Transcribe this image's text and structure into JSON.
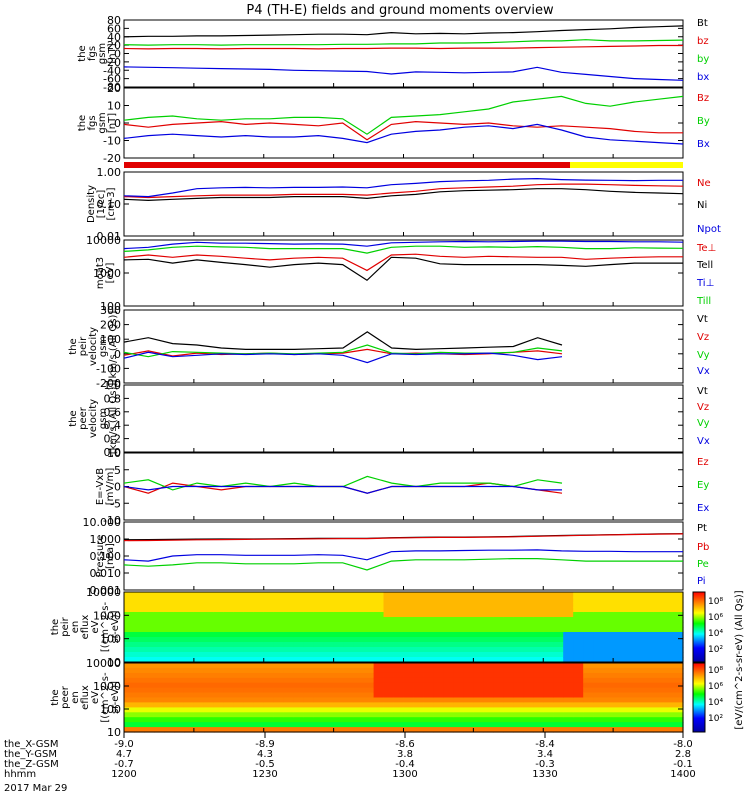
{
  "title": "P4 (TH-E) fields and ground moments overview",
  "colors": {
    "black": "#000000",
    "red": "#e00000",
    "green": "#00d000",
    "blue": "#0000e0",
    "yellow": "#ffff00"
  },
  "chart_data": [
    {
      "type": "line",
      "panel_id": "fgs-gsm-nt",
      "ylabel": [
        "the",
        "fgs",
        "gsm",
        "[nT]"
      ],
      "ylim": [
        -80,
        80
      ],
      "ticks": [
        "80",
        "60",
        "40",
        "20",
        "0",
        "-20",
        "-40",
        "-60",
        "-80"
      ],
      "series": [
        {
          "name": "Bt",
          "color": "black",
          "values": [
            40,
            41,
            41,
            42,
            42,
            43,
            44,
            45,
            46,
            46,
            45,
            50,
            47,
            48,
            47,
            49,
            50,
            52,
            55,
            57,
            59,
            62,
            64,
            66
          ]
        },
        {
          "name": "bz",
          "color": "red",
          "values": [
            12,
            11,
            12,
            12,
            11,
            12,
            12,
            12,
            11,
            12,
            12,
            13,
            13,
            12,
            13,
            13,
            13,
            14,
            15,
            16,
            17,
            18,
            19,
            19
          ]
        },
        {
          "name": "by",
          "color": "green",
          "values": [
            21,
            20,
            21,
            21,
            20,
            21,
            21,
            21,
            21,
            22,
            22,
            23,
            23,
            25,
            25,
            26,
            28,
            30,
            30,
            33,
            30,
            30,
            31,
            32
          ]
        },
        {
          "name": "bx",
          "color": "blue",
          "values": [
            -32,
            -33,
            -34,
            -35,
            -36,
            -37,
            -38,
            -40,
            -41,
            -42,
            -43,
            -49,
            -44,
            -45,
            -46,
            -45,
            -44,
            -33,
            -45,
            -50,
            -55,
            -60,
            -62,
            -64
          ]
        }
      ]
    },
    {
      "type": "line",
      "panel_id": "fgs-gsm-nt-zoom",
      "ylabel": [
        "the",
        "fgs",
        "gsm",
        "[nT]"
      ],
      "ylim": [
        -25,
        25
      ],
      "ticks": [
        "20",
        "10",
        "0",
        "-10",
        "-20"
      ],
      "series": [
        {
          "name": "Bz",
          "color": "red",
          "values": [
            -1,
            -3,
            -1,
            0,
            1,
            -1,
            0,
            -1,
            -2,
            0,
            -12,
            -1,
            1,
            0,
            -1,
            0,
            -2,
            -3,
            -2,
            -3,
            -4,
            -6,
            -7,
            -7
          ]
        },
        {
          "name": "By",
          "color": "green",
          "values": [
            2,
            4,
            5,
            3,
            2,
            3,
            3,
            4,
            4,
            3,
            -8,
            4,
            5,
            6,
            8,
            10,
            15,
            17,
            19,
            14,
            12,
            15,
            17,
            19
          ]
        },
        {
          "name": "Bx",
          "color": "blue",
          "values": [
            -11,
            -9,
            -8,
            -9,
            -10,
            -9,
            -10,
            -10,
            -9,
            -11,
            -14,
            -8,
            -6,
            -5,
            -3,
            -2,
            -4,
            -1,
            -5,
            -10,
            -12,
            -13,
            -14,
            -15
          ]
        }
      ]
    },
    {
      "type": "line",
      "panel_id": "density",
      "ylabel": [
        "Density",
        "[1/cc]",
        "[cm-3]"
      ],
      "ylim": [
        0.01,
        1.0
      ],
      "log": true,
      "ticks": [
        "1.00",
        "0.10",
        "0.01"
      ],
      "series": [
        {
          "name": "Ne",
          "color": "red",
          "values": [
            0.17,
            0.16,
            0.17,
            0.18,
            0.19,
            0.19,
            0.19,
            0.2,
            0.2,
            0.2,
            0.19,
            0.22,
            0.25,
            0.3,
            0.32,
            0.34,
            0.36,
            0.4,
            0.42,
            0.42,
            0.4,
            0.38,
            0.37,
            0.36
          ]
        },
        {
          "name": "Ni",
          "color": "black",
          "values": [
            0.14,
            0.13,
            0.14,
            0.15,
            0.16,
            0.16,
            0.16,
            0.17,
            0.17,
            0.17,
            0.15,
            0.18,
            0.2,
            0.24,
            0.26,
            0.27,
            0.28,
            0.3,
            0.3,
            0.28,
            0.25,
            0.23,
            0.22,
            0.21
          ]
        },
        {
          "name": "Npot",
          "color": "blue",
          "values": [
            0.18,
            0.17,
            0.22,
            0.3,
            0.32,
            0.33,
            0.32,
            0.33,
            0.33,
            0.34,
            0.32,
            0.4,
            0.44,
            0.5,
            0.53,
            0.55,
            0.6,
            0.62,
            0.58,
            0.56,
            0.55,
            0.54,
            0.55,
            0.55
          ]
        }
      ]
    },
    {
      "type": "line",
      "panel_id": "temperature",
      "ylabel": [
        "moat3",
        "[eV]"
      ],
      "ylim": [
        100,
        10000
      ],
      "log": true,
      "ticks": [
        "10000",
        "1000",
        "100"
      ],
      "series": [
        {
          "name": "Te⊥",
          "color": "red",
          "values": [
            3000,
            3500,
            3000,
            3500,
            3200,
            2800,
            2500,
            2800,
            3000,
            2800,
            1200,
            3500,
            3700,
            3200,
            3000,
            3200,
            3100,
            3000,
            3000,
            2600,
            2800,
            3000,
            3100,
            3100
          ]
        },
        {
          "name": "Tell",
          "color": "black",
          "values": [
            2500,
            2600,
            2000,
            2500,
            2100,
            1800,
            1500,
            1800,
            2000,
            1800,
            600,
            3000,
            2800,
            1900,
            1800,
            1800,
            1800,
            1800,
            1700,
            1600,
            1800,
            2000,
            2000,
            2000
          ]
        },
        {
          "name": "Ti⊥",
          "color": "blue",
          "values": [
            5500,
            6000,
            7500,
            8500,
            8000,
            8000,
            7800,
            7500,
            7600,
            7500,
            6500,
            8200,
            8500,
            8800,
            9000,
            8800,
            9000,
            9200,
            9200,
            9000,
            9000,
            8800,
            8800,
            8600
          ]
        },
        {
          "name": "Till",
          "color": "green",
          "values": [
            4500,
            5000,
            6000,
            6500,
            6200,
            6000,
            5500,
            5500,
            5500,
            5500,
            4000,
            6000,
            6500,
            6500,
            6000,
            6200,
            6000,
            6300,
            6000,
            5500,
            5500,
            5800,
            5700,
            5600
          ]
        }
      ]
    },
    {
      "type": "line",
      "panel_id": "peir-velocity",
      "ylabel": [
        "the",
        "peir",
        "velocity",
        "gsm",
        "[km/s (All Qs)]"
      ],
      "ylim": [
        -200,
        300
      ],
      "ticks": [
        "300",
        "200",
        "100",
        "0",
        "-100",
        "-200"
      ],
      "series": [
        {
          "name": "Vt",
          "color": "black",
          "values": [
            80,
            110,
            70,
            60,
            40,
            30,
            30,
            30,
            35,
            40,
            150,
            40,
            30,
            35,
            40,
            45,
            50,
            110,
            60
          ]
        },
        {
          "name": "Vz",
          "color": "red",
          "values": [
            -10,
            20,
            -15,
            5,
            -5,
            0,
            5,
            -5,
            0,
            5,
            30,
            0,
            5,
            0,
            -5,
            0,
            10,
            20,
            0
          ]
        },
        {
          "name": "Vy",
          "color": "green",
          "values": [
            10,
            -20,
            15,
            10,
            5,
            0,
            5,
            0,
            5,
            10,
            60,
            5,
            0,
            10,
            5,
            5,
            10,
            40,
            20
          ]
        },
        {
          "name": "Vx",
          "color": "blue",
          "values": [
            -30,
            10,
            -20,
            -10,
            0,
            -5,
            0,
            -5,
            0,
            -10,
            -60,
            0,
            -5,
            0,
            0,
            5,
            -10,
            -40,
            -20
          ]
        }
      ]
    },
    {
      "type": "line",
      "panel_id": "peer-velocity",
      "ylabel": [
        "the",
        "peer",
        "velocity",
        "gsm",
        "[km/s (All Qs)]"
      ],
      "ylim": [
        0,
        1
      ],
      "ticks": [
        "1.0",
        "0.8",
        "0.6",
        "0.4",
        "0.2",
        "0.0"
      ],
      "series": [
        {
          "name": "Vt",
          "color": "black",
          "values": []
        },
        {
          "name": "Vz",
          "color": "red",
          "values": []
        },
        {
          "name": "Vy",
          "color": "green",
          "values": []
        },
        {
          "name": "Vx",
          "color": "blue",
          "values": []
        }
      ]
    },
    {
      "type": "line",
      "panel_id": "e-field",
      "ylabel": [
        "E=-VxB",
        "[mV/m]"
      ],
      "ylim": [
        -10,
        10
      ],
      "ticks": [
        "10",
        "5",
        "0",
        "-5",
        "-10"
      ],
      "series": [
        {
          "name": "Ez",
          "color": "red",
          "values": [
            0,
            -2,
            1,
            0,
            -1,
            0,
            0,
            0,
            0,
            0,
            -2,
            0,
            0,
            0,
            0,
            1,
            0,
            -1,
            -2
          ]
        },
        {
          "name": "Ey",
          "color": "green",
          "values": [
            1,
            2,
            -1,
            1,
            0,
            1,
            0,
            1,
            0,
            0,
            3,
            1,
            0,
            1,
            1,
            1,
            0,
            2,
            1
          ]
        },
        {
          "name": "Ex",
          "color": "blue",
          "values": [
            0,
            -1,
            0,
            0,
            0,
            0,
            0,
            0,
            0,
            0,
            -2,
            0,
            0,
            0,
            0,
            0,
            0,
            -1,
            -1
          ]
        }
      ]
    },
    {
      "type": "line",
      "panel_id": "pressure",
      "ylabel": [
        "Pressure",
        "[nPa]"
      ],
      "ylim": [
        0.001,
        10
      ],
      "log": true,
      "ticks": [
        "10.000",
        "1.000",
        "0.100",
        "0.010",
        "0.001"
      ],
      "series": [
        {
          "name": "Pt",
          "color": "black",
          "values": [
            0.9,
            0.92,
            0.95,
            0.98,
            1.0,
            1.0,
            1.02,
            1.05,
            1.08,
            1.1,
            1.1,
            1.2,
            1.25,
            1.3,
            1.3,
            1.35,
            1.4,
            1.5,
            1.6,
            1.7,
            1.8,
            1.9,
            2.0,
            2.05
          ]
        },
        {
          "name": "Pb",
          "color": "red",
          "values": [
            0.8,
            0.82,
            0.85,
            0.9,
            0.92,
            0.95,
            0.97,
            1.0,
            1.03,
            1.05,
            1.05,
            1.15,
            1.2,
            1.25,
            1.25,
            1.3,
            1.35,
            1.45,
            1.55,
            1.65,
            1.75,
            1.85,
            1.95,
            2.0
          ]
        },
        {
          "name": "Pe",
          "color": "green",
          "values": [
            0.03,
            0.025,
            0.03,
            0.04,
            0.04,
            0.035,
            0.035,
            0.035,
            0.04,
            0.04,
            0.015,
            0.05,
            0.06,
            0.06,
            0.06,
            0.065,
            0.07,
            0.07,
            0.06,
            0.05,
            0.05,
            0.05,
            0.05,
            0.05
          ]
        },
        {
          "name": "Pi",
          "color": "blue",
          "values": [
            0.06,
            0.05,
            0.1,
            0.12,
            0.12,
            0.11,
            0.11,
            0.11,
            0.12,
            0.11,
            0.06,
            0.18,
            0.2,
            0.2,
            0.21,
            0.22,
            0.22,
            0.23,
            0.2,
            0.19,
            0.19,
            0.18,
            0.18,
            0.18
          ]
        }
      ]
    },
    {
      "type": "heatmap",
      "panel_id": "peir-spec",
      "ylabel": [
        "the",
        "peir",
        "en",
        "eflux",
        "eV",
        "[(cm^2-s-",
        "sr-eV)]"
      ],
      "ylim": [
        10,
        10000
      ],
      "log": true,
      "ticks": [
        "10000",
        "1000",
        "100",
        "10"
      ]
    },
    {
      "type": "heatmap",
      "panel_id": "peer-spec",
      "ylabel": [
        "the",
        "peer",
        "en",
        "eflux",
        "eV",
        "[(cm^2-s-",
        "sr-eV)]"
      ],
      "ylim": [
        10,
        10000
      ],
      "log": true,
      "ticks": [
        "10000",
        "1000",
        "100",
        "10"
      ]
    }
  ],
  "colorbar": {
    "label": "[eV/(cm^2-s-sr-eV) (All Qs)]",
    "ticks": [
      "10⁸",
      "10⁶",
      "10⁴",
      "10²"
    ]
  },
  "xaxis": {
    "ticks": [
      "-9.0",
      "-8.9",
      "-8.6",
      "-8.4",
      "-8.0"
    ],
    "rows": [
      {
        "label": "the_X-GSM",
        "values": [
          "-9.0",
          "-8.9",
          "-8.6",
          "-8.4",
          "-8.0"
        ]
      },
      {
        "label": "the_Y-GSM",
        "values": [
          "4.7",
          "4.3",
          "3.8",
          "3.4",
          "2.8"
        ]
      },
      {
        "label": "the_Z-GSM",
        "values": [
          "-0.7",
          "-0.5",
          "-0.4",
          "-0.3",
          "-0.1"
        ]
      },
      {
        "label": "hhmm",
        "values": [
          "1200",
          "1230",
          "1300",
          "1330",
          "1400"
        ]
      }
    ],
    "date": "2017 Mar 29"
  }
}
